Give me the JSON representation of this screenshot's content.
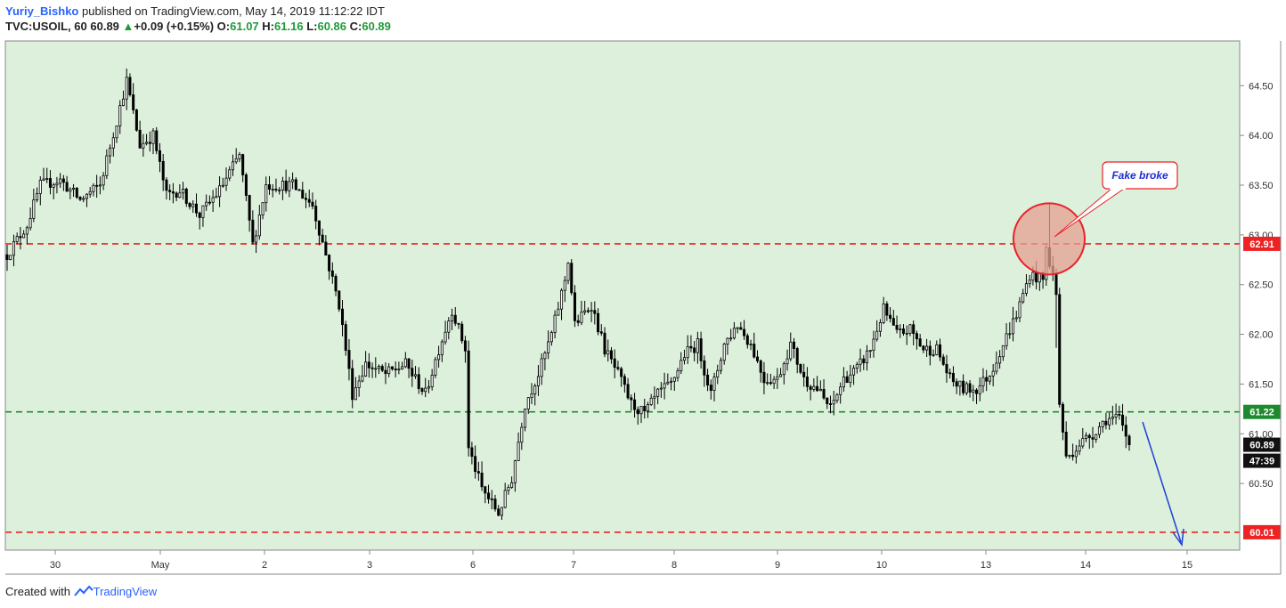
{
  "header": {
    "author": "Yuriy_Bishko",
    "published_text": " published on TradingView.com, May 14, 2019 11:12:22 IDT",
    "symbol": "TVC:USOIL, 60",
    "last": "60.89",
    "change": "+0.09 (+0.15%)",
    "o_label": "O:",
    "o_value": "61.07",
    "h_label": "H:",
    "h_value": "61.16",
    "l_label": "L:",
    "l_value": "60.86",
    "c_label": "C:",
    "c_value": "60.89",
    "up_icon": "triangle-up-icon"
  },
  "footer": {
    "created_with": "Created with",
    "brand": "TradingView",
    "logo_icon": "tradingview-logo-icon"
  },
  "colors": {
    "background": "#dcf0dc",
    "resistance": "#ee2222",
    "support": "#1e8a2e",
    "annotation_arrow": "#1f3fd6",
    "callout_text": "#1f2fd0",
    "circle_fill": "#e6a090"
  },
  "chart_data": {
    "type": "candlestick",
    "ylim": [
      59.83,
      64.95
    ],
    "y_ticks": [
      "64.50",
      "64.00",
      "63.50",
      "63.00",
      "62.50",
      "62.00",
      "61.50",
      "61.00",
      "60.50"
    ],
    "x_ticks": [
      "30",
      "May",
      "2",
      "3",
      "6",
      "7",
      "8",
      "9",
      "10",
      "13",
      "14",
      "15"
    ],
    "levels": [
      {
        "value": 62.91,
        "label": "62.91",
        "color": "#ee2222"
      },
      {
        "value": 61.22,
        "label": "61.22",
        "color": "#1e8a2e"
      },
      {
        "value": 60.01,
        "label": "60.01",
        "color": "#ee2222"
      }
    ],
    "last_price": {
      "label": "60.89",
      "value": 60.89
    },
    "countdown": "47:39",
    "annotation": {
      "text": "Fake broke",
      "circle_at_price": 62.96
    },
    "anchors": [
      [
        0,
        62.8
      ],
      [
        6,
        63.1
      ],
      [
        10,
        63.5
      ],
      [
        16,
        63.55
      ],
      [
        22,
        63.35
      ],
      [
        28,
        63.5
      ],
      [
        33,
        64.15
      ],
      [
        36,
        64.55
      ],
      [
        40,
        63.9
      ],
      [
        44,
        64.0
      ],
      [
        48,
        63.4
      ],
      [
        52,
        63.45
      ],
      [
        58,
        63.2
      ],
      [
        64,
        63.45
      ],
      [
        70,
        63.8
      ],
      [
        74,
        62.9
      ],
      [
        78,
        63.5
      ],
      [
        86,
        63.5
      ],
      [
        92,
        63.3
      ],
      [
        96,
        62.8
      ],
      [
        100,
        62.3
      ],
      [
        104,
        61.4
      ],
      [
        108,
        61.7
      ],
      [
        114,
        61.6
      ],
      [
        120,
        61.7
      ],
      [
        126,
        61.4
      ],
      [
        130,
        61.85
      ],
      [
        134,
        62.25
      ],
      [
        138,
        61.85
      ],
      [
        139,
        60.85
      ],
      [
        143,
        60.45
      ],
      [
        148,
        60.2
      ],
      [
        152,
        60.55
      ],
      [
        156,
        61.3
      ],
      [
        160,
        61.6
      ],
      [
        164,
        62.0
      ],
      [
        168,
        62.55
      ],
      [
        169,
        62.75
      ],
      [
        171,
        62.1
      ],
      [
        176,
        62.3
      ],
      [
        180,
        61.85
      ],
      [
        184,
        61.6
      ],
      [
        188,
        61.3
      ],
      [
        192,
        61.2
      ],
      [
        196,
        61.4
      ],
      [
        200,
        61.5
      ],
      [
        204,
        61.8
      ],
      [
        208,
        61.9
      ],
      [
        212,
        61.4
      ],
      [
        216,
        61.9
      ],
      [
        220,
        62.1
      ],
      [
        224,
        61.9
      ],
      [
        228,
        61.55
      ],
      [
        232,
        61.55
      ],
      [
        236,
        61.9
      ],
      [
        240,
        61.55
      ],
      [
        244,
        61.45
      ],
      [
        248,
        61.25
      ],
      [
        252,
        61.55
      ],
      [
        256,
        61.65
      ],
      [
        260,
        61.85
      ],
      [
        264,
        62.25
      ],
      [
        268,
        62.0
      ],
      [
        272,
        62.05
      ],
      [
        276,
        61.85
      ],
      [
        280,
        61.85
      ],
      [
        284,
        61.55
      ],
      [
        288,
        61.45
      ],
      [
        292,
        61.45
      ],
      [
        296,
        61.6
      ],
      [
        300,
        61.9
      ],
      [
        304,
        62.2
      ],
      [
        308,
        62.6
      ],
      [
        312,
        62.55
      ],
      [
        313,
        62.85
      ],
      [
        315,
        62.6
      ],
      [
        317,
        61.3
      ],
      [
        319,
        60.75
      ],
      [
        323,
        60.9
      ],
      [
        327,
        61.0
      ],
      [
        331,
        61.15
      ],
      [
        335,
        61.15
      ],
      [
        338,
        60.89
      ]
    ]
  }
}
